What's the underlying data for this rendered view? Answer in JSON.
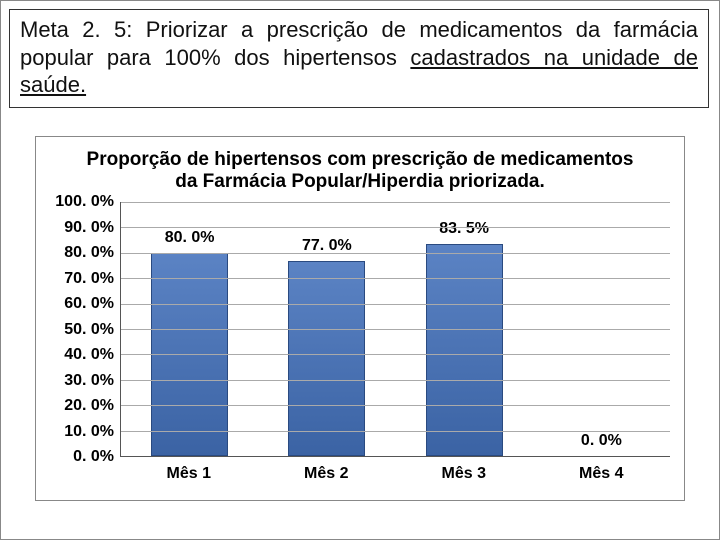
{
  "header": {
    "line1_pre": "Meta 2. 5: Priorizar a prescrição de medicamentos da",
    "line2": "farmácia popular para 100% dos hipertensos",
    "line3_underlined": "cadastrados na unidade de saúde."
  },
  "chart": {
    "type": "bar",
    "title": "Proporção de hipertensos com prescrição de medicamentos da Farmácia Popular/Hiperdia priorizada.",
    "ylim": [
      0,
      100
    ],
    "ytick_step": 10,
    "y_ticks": [
      "100. 0%",
      "90. 0%",
      "80. 0%",
      "70. 0%",
      "60. 0%",
      "50. 0%",
      "40. 0%",
      "30. 0%",
      "20. 0%",
      "10. 0%",
      "0. 0%"
    ],
    "categories": [
      "Mês 1",
      "Mês 2",
      "Mês 3",
      "Mês 4"
    ],
    "values": [
      80.0,
      77.0,
      83.5,
      0.0
    ],
    "value_labels": [
      "80. 0%",
      "77. 0%",
      "83. 5%",
      "0. 0%"
    ],
    "bar_color_top": "#5b83c4",
    "bar_color_bottom": "#3b63a4",
    "bar_border": "#2a4a80",
    "grid_color": "#aaaaaa",
    "axis_color": "#555555",
    "background_color": "#ffffff",
    "title_fontsize": 19,
    "label_fontsize": 16,
    "bar_width_ratio": 0.56
  }
}
